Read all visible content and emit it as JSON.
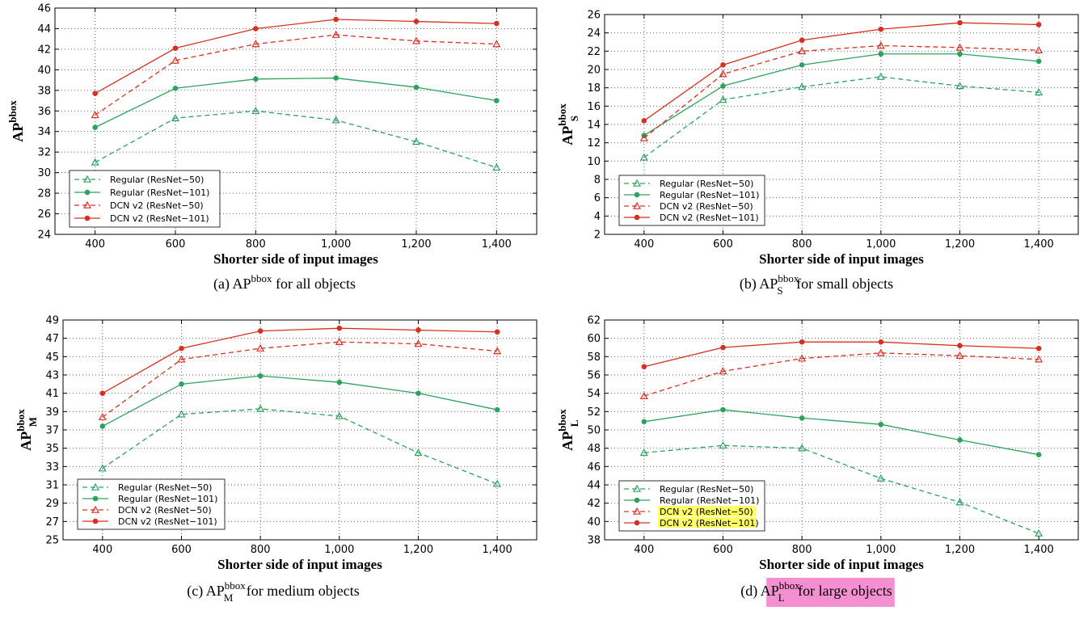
{
  "colors": {
    "green": "#2ca25f",
    "red": "#d7301f",
    "legend_highlight": "#ffff66",
    "caption_highlight": "#f48fd1"
  },
  "chart_data": [
    {
      "type": "line",
      "panel": "a",
      "x": [
        400,
        600,
        800,
        1000,
        1200,
        1400
      ],
      "x_tick_labels": [
        "400",
        "600",
        "800",
        "1,000",
        "1,200",
        "1,400"
      ],
      "xlim": [
        300,
        1500
      ],
      "xlabel": "Shorter side of input images",
      "ylabel": {
        "main": "AP",
        "sup": "bbox",
        "sub": ""
      },
      "ylim": [
        24,
        46
      ],
      "yticks": [
        24,
        26,
        28,
        30,
        32,
        34,
        36,
        38,
        40,
        42,
        44,
        46
      ],
      "grid": true,
      "legend_position": "bottom-left",
      "caption": {
        "prefix": "(a)  AP",
        "sup": "bbox",
        "sub": "",
        "suffix": " for all objects",
        "highlight": false
      },
      "series": [
        {
          "name": "Regular (ResNet−50)",
          "color": "green",
          "dashed": true,
          "marker": "triangle",
          "values": [
            31.0,
            35.3,
            36.0,
            35.1,
            33.0,
            30.5
          ]
        },
        {
          "name": "Regular (ResNet−101)",
          "color": "green",
          "dashed": false,
          "marker": "dot",
          "values": [
            34.4,
            38.2,
            39.1,
            39.2,
            38.3,
            37.0
          ]
        },
        {
          "name": "DCN v2 (ResNet−50)",
          "color": "red",
          "dashed": true,
          "marker": "triangle",
          "values": [
            35.6,
            40.9,
            42.5,
            43.4,
            42.8,
            42.5
          ]
        },
        {
          "name": "DCN v2 (ResNet−101)",
          "color": "red",
          "dashed": false,
          "marker": "dot",
          "values": [
            37.7,
            42.1,
            44.0,
            44.9,
            44.7,
            44.5
          ]
        }
      ]
    },
    {
      "type": "line",
      "panel": "b",
      "x": [
        400,
        600,
        800,
        1000,
        1200,
        1400
      ],
      "x_tick_labels": [
        "400",
        "600",
        "800",
        "1,000",
        "1,200",
        "1,400"
      ],
      "xlim": [
        300,
        1500
      ],
      "xlabel": "Shorter side of input images",
      "ylabel": {
        "main": "AP",
        "sup": "bbox",
        "sub": "S"
      },
      "ylim": [
        2,
        26
      ],
      "yticks": [
        2,
        4,
        6,
        8,
        10,
        12,
        14,
        16,
        18,
        20,
        22,
        24,
        26
      ],
      "grid": true,
      "legend_position": "bottom-left",
      "caption": {
        "prefix": "(b)  AP",
        "sup": "bbox",
        "sub": "S",
        "suffix": " for small objects",
        "highlight": false
      },
      "series": [
        {
          "name": "Regular (ResNet−50)",
          "color": "green",
          "dashed": true,
          "marker": "triangle",
          "values": [
            10.4,
            16.7,
            18.1,
            19.2,
            18.2,
            17.5
          ]
        },
        {
          "name": "Regular (ResNet−101)",
          "color": "green",
          "dashed": false,
          "marker": "dot",
          "values": [
            12.8,
            18.2,
            20.5,
            21.7,
            21.7,
            20.9
          ]
        },
        {
          "name": "DCN v2 (ResNet−50)",
          "color": "red",
          "dashed": true,
          "marker": "triangle",
          "values": [
            12.5,
            19.5,
            22.0,
            22.6,
            22.4,
            22.1
          ]
        },
        {
          "name": "DCN v2 (ResNet−101)",
          "color": "red",
          "dashed": false,
          "marker": "dot",
          "values": [
            14.4,
            20.5,
            23.2,
            24.4,
            25.1,
            24.9
          ]
        }
      ]
    },
    {
      "type": "line",
      "panel": "c",
      "x": [
        400,
        600,
        800,
        1000,
        1200,
        1400
      ],
      "x_tick_labels": [
        "400",
        "600",
        "800",
        "1,000",
        "1,200",
        "1,400"
      ],
      "xlim": [
        300,
        1500
      ],
      "xlabel": "Shorter side of input images",
      "ylabel": {
        "main": "AP",
        "sup": "bbox",
        "sub": "M"
      },
      "ylim": [
        25,
        49
      ],
      "yticks": [
        25,
        27,
        29,
        31,
        33,
        35,
        37,
        39,
        41,
        43,
        45,
        47,
        49
      ],
      "grid": true,
      "legend_position": "bottom-left",
      "caption": {
        "prefix": "(c)  AP",
        "sup": "bbox",
        "sub": "M",
        "suffix": " for medium objects",
        "highlight": false
      },
      "series": [
        {
          "name": "Regular (ResNet−50)",
          "color": "green",
          "dashed": true,
          "marker": "triangle",
          "values": [
            32.8,
            38.7,
            39.3,
            38.5,
            34.5,
            31.1
          ]
        },
        {
          "name": "Regular (ResNet−101)",
          "color": "green",
          "dashed": false,
          "marker": "dot",
          "values": [
            37.4,
            42.0,
            42.9,
            42.2,
            41.0,
            39.2
          ]
        },
        {
          "name": "DCN v2 (ResNet−50)",
          "color": "red",
          "dashed": true,
          "marker": "triangle",
          "values": [
            38.4,
            44.7,
            45.9,
            46.6,
            46.4,
            45.6
          ]
        },
        {
          "name": "DCN v2 (ResNet−101)",
          "color": "red",
          "dashed": false,
          "marker": "dot",
          "values": [
            41.0,
            45.9,
            47.8,
            48.1,
            47.9,
            47.7
          ]
        }
      ]
    },
    {
      "type": "line",
      "panel": "d",
      "x": [
        400,
        600,
        800,
        1000,
        1200,
        1400
      ],
      "x_tick_labels": [
        "400",
        "600",
        "800",
        "1,000",
        "1,200",
        "1,400"
      ],
      "xlim": [
        300,
        1500
      ],
      "xlabel": "Shorter side of input images",
      "ylabel": {
        "main": "AP",
        "sup": "bbox",
        "sub": "L"
      },
      "ylim": [
        38,
        62
      ],
      "yticks": [
        38,
        40,
        42,
        44,
        46,
        48,
        50,
        52,
        54,
        56,
        58,
        60,
        62
      ],
      "grid": true,
      "legend_position": "bottom-left",
      "legend_highlight": [
        "DCN v2 (ResNet−50)",
        "DCN v2 (ResNet−101)"
      ],
      "caption": {
        "prefix": "(d)  AP",
        "sup": "bbox",
        "sub": "L",
        "suffix": " for large objects",
        "highlight": true
      },
      "series": [
        {
          "name": "Regular (ResNet−50)",
          "color": "green",
          "dashed": true,
          "marker": "triangle",
          "values": [
            47.5,
            48.3,
            48.0,
            44.7,
            42.1,
            38.7
          ]
        },
        {
          "name": "Regular (ResNet−101)",
          "color": "green",
          "dashed": false,
          "marker": "dot",
          "values": [
            50.9,
            52.2,
            51.3,
            50.6,
            48.9,
            47.3
          ]
        },
        {
          "name": "DCN v2 (ResNet−50)",
          "color": "red",
          "dashed": true,
          "marker": "triangle",
          "values": [
            53.7,
            56.4,
            57.8,
            58.4,
            58.1,
            57.7
          ]
        },
        {
          "name": "DCN v2 (ResNet−101)",
          "color": "red",
          "dashed": false,
          "marker": "dot",
          "values": [
            56.9,
            59.0,
            59.6,
            59.6,
            59.2,
            58.9
          ]
        }
      ]
    }
  ]
}
